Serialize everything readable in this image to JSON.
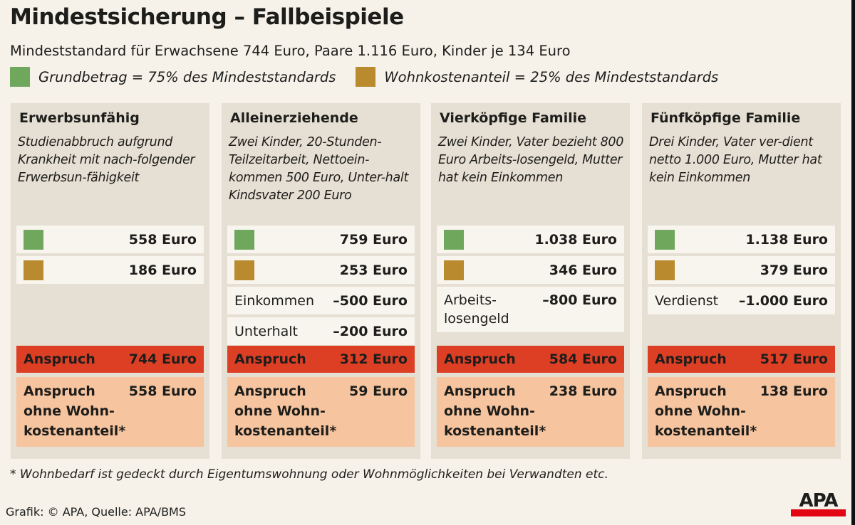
{
  "title": "Mindestsicherung – Fallbeispiele",
  "subtitle": "Mindeststandard für Erwachsene 744 Euro, Paare 1.116 Euro, Kinder je 134 Euro",
  "legend": [
    {
      "label": "Grundbetrag = 75% des Mindeststandards",
      "color": "#6fa85c"
    },
    {
      "label": "Wohnkostenanteil = 25% des Mindeststandards",
      "color": "#b98a2e"
    }
  ],
  "colors": {
    "anspruch": "#dd3f25",
    "ohne": "#f6c49e"
  },
  "columns": [
    {
      "title": "Erwerbsunfähig",
      "desc": "Studienabbruch aufgrund Krankheit mit nach-folgender Erwerbsun-fähigkeit",
      "grund": "558 Euro",
      "wohn": "186 Euro",
      "extra": [],
      "anspruch_label": "Anspruch",
      "anspruch": "744 Euro",
      "ohne_label": "Anspruch\nohne Wohn-\nkostenanteil*",
      "ohne": "558 Euro"
    },
    {
      "title": "Alleinerziehende",
      "desc": "Zwei Kinder, 20-Stunden-Teilzeitarbeit, Nettoein-kommen 500 Euro, Unter-halt Kindsvater 200 Euro",
      "grund": "759 Euro",
      "wohn": "253 Euro",
      "extra": [
        {
          "label": "Einkommen",
          "value": "–500 Euro"
        },
        {
          "label": "Unterhalt",
          "value": "–200 Euro"
        }
      ],
      "anspruch_label": "Anspruch",
      "anspruch": "312 Euro",
      "ohne_label": "Anspruch\nohne Wohn-\nkostenanteil*",
      "ohne": "59 Euro"
    },
    {
      "title": "Vierköpfige Familie",
      "desc": "Zwei Kinder, Vater bezieht 800 Euro Arbeits-losengeld, Mutter hat kein Einkommen",
      "grund": "1.038 Euro",
      "wohn": "346 Euro",
      "extra": [
        {
          "label": "Arbeits-\nlosengeld",
          "value": "–800 Euro"
        }
      ],
      "anspruch_label": "Anspruch",
      "anspruch": "584 Euro",
      "ohne_label": "Anspruch\nohne Wohn-\nkostenanteil*",
      "ohne": "238 Euro"
    },
    {
      "title": "Fünfköpfige Familie",
      "desc": "Drei Kinder, Vater ver-dient netto 1.000 Euro, Mutter hat kein Einkommen",
      "grund": "1.138 Euro",
      "wohn": "379 Euro",
      "extra": [
        {
          "label": "Verdienst",
          "value": "–1.000 Euro"
        }
      ],
      "anspruch_label": "Anspruch",
      "anspruch": "517 Euro",
      "ohne_label": "Anspruch\nohne Wohn-\nkostenanteil*",
      "ohne": "138 Euro"
    }
  ],
  "footnote": "* Wohnbedarf ist gedeckt durch Eigentumswohnung oder Wohnmöglichkeiten bei Verwandten etc.",
  "credit": "Grafik: © APA, Quelle: APA/BMS",
  "logo": "APA"
}
